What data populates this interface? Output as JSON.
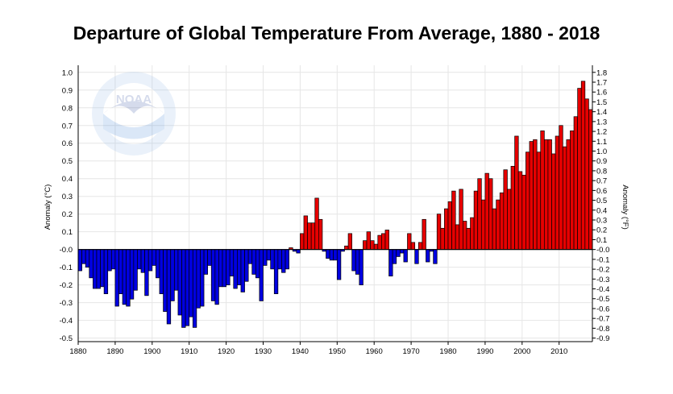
{
  "chart_data": {
    "type": "bar",
    "title": "Departure of Global Temperature From Average, 1880 - 2018",
    "ylabel_left": "Anomaly (°C)",
    "ylabel_right": "Anomaly (°F)",
    "xlim": [
      1880,
      2018
    ],
    "ylim": [
      -0.52,
      1.04
    ],
    "ylim_right_f": [
      -0.936,
      1.872
    ],
    "grid": true,
    "x_ticks": [
      "1880",
      "1890",
      "1900",
      "1910",
      "1920",
      "1930",
      "1940",
      "1950",
      "1960",
      "1970",
      "1980",
      "1990",
      "2000",
      "2010"
    ],
    "y_ticks_left": [
      "-0.5",
      "-0.4",
      "-0.3",
      "-0.2",
      "-0.1",
      "-0.0",
      "0.1",
      "0.2",
      "0.3",
      "0.4",
      "0.5",
      "0.6",
      "0.7",
      "0.8",
      "0.9",
      "1.0"
    ],
    "y_ticks_right": [
      "-0.9",
      "-0.8",
      "-0.7",
      "-0.6",
      "-0.5",
      "-0.4",
      "-0.3",
      "-0.2",
      "-0.1",
      "-0.0",
      "0.1",
      "0.2",
      "0.3",
      "0.4",
      "0.5",
      "0.6",
      "0.7",
      "0.8",
      "0.9",
      "1.0",
      "1.1",
      "1.2",
      "1.3",
      "1.4",
      "1.5",
      "1.6",
      "1.7",
      "1.8"
    ],
    "colors": {
      "positive": "#e60000",
      "negative": "#0000e0",
      "outline": "#000000"
    },
    "x": [
      1880,
      1881,
      1882,
      1883,
      1884,
      1885,
      1886,
      1887,
      1888,
      1889,
      1890,
      1891,
      1892,
      1893,
      1894,
      1895,
      1896,
      1897,
      1898,
      1899,
      1900,
      1901,
      1902,
      1903,
      1904,
      1905,
      1906,
      1907,
      1908,
      1909,
      1910,
      1911,
      1912,
      1913,
      1914,
      1915,
      1916,
      1917,
      1918,
      1919,
      1920,
      1921,
      1922,
      1923,
      1924,
      1925,
      1926,
      1927,
      1928,
      1929,
      1930,
      1931,
      1932,
      1933,
      1934,
      1935,
      1936,
      1937,
      1938,
      1939,
      1940,
      1941,
      1942,
      1943,
      1944,
      1945,
      1946,
      1947,
      1948,
      1949,
      1950,
      1951,
      1952,
      1953,
      1954,
      1955,
      1956,
      1957,
      1958,
      1959,
      1960,
      1961,
      1962,
      1963,
      1964,
      1965,
      1966,
      1967,
      1968,
      1969,
      1970,
      1971,
      1972,
      1973,
      1974,
      1975,
      1976,
      1977,
      1978,
      1979,
      1980,
      1981,
      1982,
      1983,
      1984,
      1985,
      1986,
      1987,
      1988,
      1989,
      1990,
      1991,
      1992,
      1993,
      1994,
      1995,
      1996,
      1997,
      1998,
      1999,
      2000,
      2001,
      2002,
      2003,
      2004,
      2005,
      2006,
      2007,
      2008,
      2009,
      2010,
      2011,
      2012,
      2013,
      2014,
      2015,
      2016,
      2017,
      2018
    ],
    "values": [
      -0.12,
      -0.08,
      -0.1,
      -0.16,
      -0.22,
      -0.22,
      -0.21,
      -0.25,
      -0.12,
      -0.11,
      -0.32,
      -0.25,
      -0.31,
      -0.32,
      -0.28,
      -0.23,
      -0.11,
      -0.13,
      -0.26,
      -0.12,
      -0.09,
      -0.16,
      -0.25,
      -0.35,
      -0.42,
      -0.29,
      -0.23,
      -0.37,
      -0.44,
      -0.43,
      -0.38,
      -0.44,
      -0.33,
      -0.32,
      -0.14,
      -0.09,
      -0.29,
      -0.31,
      -0.21,
      -0.21,
      -0.2,
      -0.15,
      -0.22,
      -0.2,
      -0.24,
      -0.18,
      -0.08,
      -0.14,
      -0.16,
      -0.29,
      -0.09,
      -0.06,
      -0.11,
      -0.25,
      -0.11,
      -0.13,
      -0.11,
      0.01,
      -0.01,
      -0.02,
      0.09,
      0.19,
      0.15,
      0.15,
      0.29,
      0.17,
      -0.01,
      -0.05,
      -0.06,
      -0.06,
      -0.17,
      -0.01,
      0.02,
      0.09,
      -0.12,
      -0.14,
      -0.2,
      0.05,
      0.1,
      0.05,
      0.03,
      0.08,
      0.09,
      0.11,
      -0.15,
      -0.08,
      -0.04,
      -0.02,
      -0.07,
      0.09,
      0.04,
      -0.08,
      0.04,
      0.17,
      -0.07,
      -0.01,
      -0.08,
      0.2,
      0.12,
      0.23,
      0.27,
      0.33,
      0.14,
      0.34,
      0.16,
      0.12,
      0.18,
      0.33,
      0.4,
      0.28,
      0.43,
      0.4,
      0.23,
      0.28,
      0.32,
      0.45,
      0.34,
      0.47,
      0.64,
      0.44,
      0.42,
      0.55,
      0.61,
      0.62,
      0.55,
      0.67,
      0.62,
      0.62,
      0.54,
      0.64,
      0.7,
      0.58,
      0.62,
      0.67,
      0.75,
      0.91,
      0.95,
      0.85,
      0.79
    ]
  },
  "watermark": {
    "logo": "NOAA",
    "ring_text": "NATIONAL OCEANIC AND ATMOSPHERIC ADMINISTRATION · U.S. DEPARTMENT OF COMMERCE"
  }
}
